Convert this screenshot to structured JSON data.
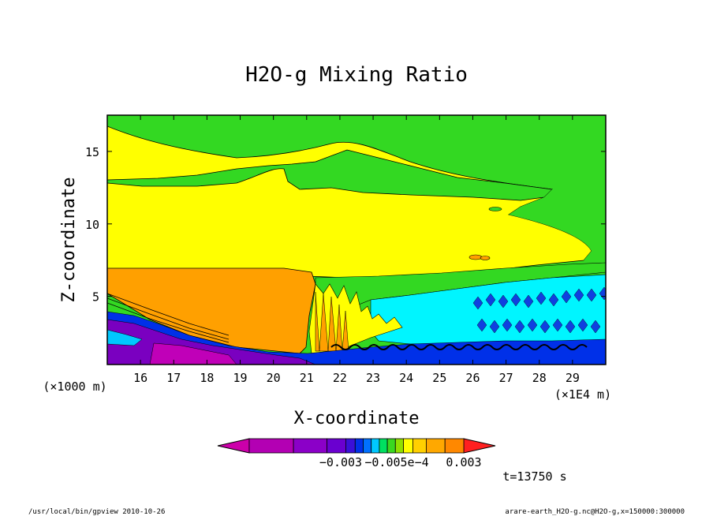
{
  "chart_data": {
    "type": "contour",
    "title": "H2O-g Mixing Ratio",
    "xlabel": "X-coordinate",
    "ylabel": "Z-coordinate",
    "x_unit_label": "(×1E4 m)",
    "y_unit_label": "(×1000 m)",
    "xlim": [
      15,
      30
    ],
    "ylim": [
      0.3,
      17.5
    ],
    "x_ticks": [
      "16",
      "17",
      "18",
      "19",
      "20",
      "21",
      "22",
      "23",
      "24",
      "25",
      "26",
      "27",
      "28",
      "29"
    ],
    "y_ticks": [
      "5",
      "10",
      "15"
    ],
    "colorbar": {
      "levels": 13,
      "labels": [
        "−0.003",
        "−0.005e−4",
        "0.003"
      ],
      "colors": [
        "#cc00aa",
        "#b300b3",
        "#8b00c8",
        "#6a00d0",
        "#3a10d8",
        "#0030e8",
        "#0070ff",
        "#00c8ff",
        "#00e060",
        "#3ad820",
        "#90e000",
        "#ffff00",
        "#ffd000",
        "#ffa800",
        "#ff8800",
        "#ff2020"
      ]
    },
    "regions": [
      {
        "level": "green",
        "color": "#3ad820",
        "description_zone": "upper background"
      },
      {
        "level": "yellow",
        "color": "#ffff00",
        "description_zone": "mid band"
      },
      {
        "level": "orange",
        "color": "#ffa000",
        "description_zone": "lower left block"
      },
      {
        "level": "cyan",
        "color": "#00ffff",
        "description_zone": "lower right"
      },
      {
        "level": "purple",
        "color": "#7a00c0",
        "description_zone": "near-surface left"
      },
      {
        "level": "blue",
        "color": "#0030e8",
        "description_zone": "near-surface"
      }
    ]
  },
  "annotations": {
    "time": "t=13750 s",
    "footer_left": "/usr/local/bin/gpview   2010-10-26",
    "footer_right": "arare-earth_H2O-g.nc@H2O-g,x=150000:300000"
  }
}
